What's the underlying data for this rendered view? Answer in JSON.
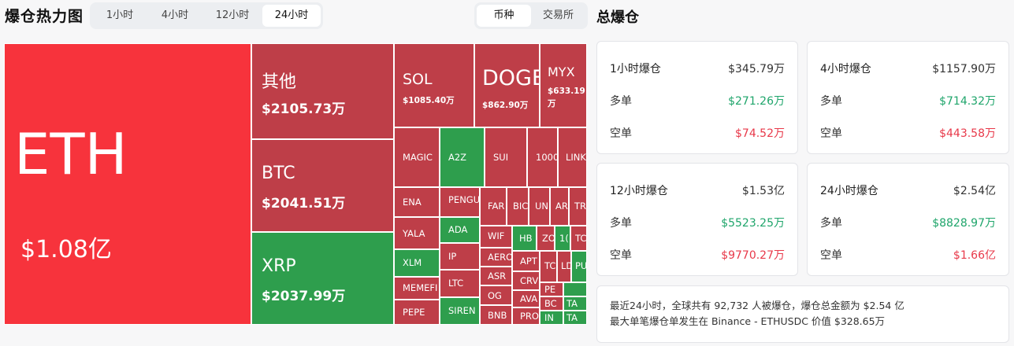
{
  "header": {
    "title": "爆仓热力图",
    "time_tabs": [
      "1小时",
      "4小时",
      "12小时",
      "24小时"
    ],
    "active_time_tab": "24小时",
    "mode_tabs": [
      "币种",
      "交易所"
    ],
    "active_mode_tab": "币种"
  },
  "heatmap": {
    "tiles": {
      "eth": {
        "symbol": "ETH",
        "amount": "$1.08亿"
      },
      "other": {
        "symbol": "其他",
        "amount": "$2105.73万"
      },
      "btc": {
        "symbol": "BTC",
        "amount": "$2041.51万"
      },
      "xrp": {
        "symbol": "XRP",
        "amount": "$2037.99万"
      },
      "sol": {
        "symbol": "SOL",
        "amount": "$1085.40万"
      },
      "doge": {
        "symbol": "DOGE",
        "amount": "$862.90万"
      },
      "myx": {
        "symbol": "MYX",
        "amount": "$633.19万"
      },
      "magic": {
        "symbol": "MAGIC"
      },
      "a2z": {
        "symbol": "A2Z"
      },
      "sui": {
        "symbol": "SUI"
      },
      "t1000": {
        "symbol": "1000"
      },
      "link": {
        "symbol": "LINK"
      },
      "ena": {
        "symbol": "ENA"
      },
      "pengu": {
        "symbol": "PENGU"
      },
      "far": {
        "symbol": "FAR"
      },
      "bic": {
        "symbol": "BIC"
      },
      "un": {
        "symbol": "UN"
      },
      "ar": {
        "symbol": "AR"
      },
      "tr": {
        "symbol": "TR"
      },
      "yala": {
        "symbol": "YALA"
      },
      "ada": {
        "symbol": "ADA"
      },
      "wif": {
        "symbol": "WIF"
      },
      "hb": {
        "symbol": "HB"
      },
      "zo": {
        "symbol": "ZO"
      },
      "t1": {
        "symbol": "1("
      },
      "tc": {
        "symbol": "TC"
      },
      "xlm": {
        "symbol": "XLM"
      },
      "ip": {
        "symbol": "IP"
      },
      "aero": {
        "symbol": "AERO"
      },
      "apt": {
        "symbol": "APT"
      },
      "tc2": {
        "symbol": "TC"
      },
      "ld": {
        "symbol": "LD"
      },
      "pu": {
        "symbol": "PU"
      },
      "memefi": {
        "symbol": "MEMEFI"
      },
      "ltc": {
        "symbol": "LTC"
      },
      "asr": {
        "symbol": "ASR"
      },
      "crv": {
        "symbol": "CRV"
      },
      "pe": {
        "symbol": "PE"
      },
      "og": {
        "symbol": "OG"
      },
      "ava": {
        "symbol": "AVA"
      },
      "bc": {
        "symbol": "BC"
      },
      "ta": {
        "symbol": "TA"
      },
      "pepe": {
        "symbol": "PEPE"
      },
      "siren": {
        "symbol": "SIREN"
      },
      "bnb": {
        "symbol": "BNB"
      },
      "pro": {
        "symbol": "PRO"
      },
      "in": {
        "symbol": "IN"
      },
      "ta2": {
        "symbol": "TA"
      }
    }
  },
  "summary_panel": {
    "title": "总爆仓",
    "long_label": "多单",
    "short_label": "空单",
    "cards": [
      {
        "label": "1小时爆仓",
        "total": "$345.79万",
        "long": "$271.26万",
        "short": "$74.52万"
      },
      {
        "label": "4小时爆仓",
        "total": "$1157.90万",
        "long": "$714.32万",
        "short": "$443.58万"
      },
      {
        "label": "12小时爆仓",
        "total": "$1.53亿",
        "long": "$5523.25万",
        "short": "$9770.27万"
      },
      {
        "label": "24小时爆仓",
        "total": "$2.54亿",
        "long": "$8828.97万",
        "short": "$1.66亿"
      }
    ],
    "footer_line1": "最近24小时，全球共有 92,732 人被爆仓，爆仓总金额为 $2.54 亿",
    "footer_line2": "最大单笔爆仓单发生在 Binance - ETHUSDC 价值 $328.65万"
  }
}
